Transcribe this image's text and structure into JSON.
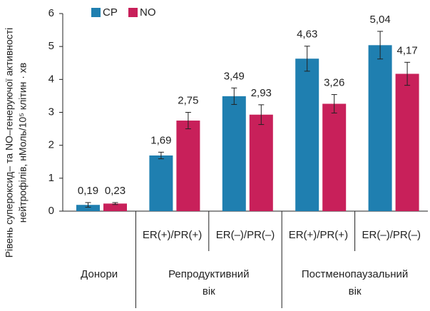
{
  "chart_data": {
    "type": "bar",
    "ylabel": [
      "Рівень супероксид– та NO–генеруючої активності",
      "нейтрофілів, нМоль/10⁵ клітин · хв"
    ],
    "categories": [
      null,
      "ER(+)/PR(+)",
      "ER(–)/PR(–)",
      "ER(+)/PR(+)",
      "ER(–)/PR(–)"
    ],
    "groups": [
      [
        "Донори"
      ],
      [
        "Репродуктивний",
        "вік"
      ],
      [
        "Постменопаузальний",
        "вік"
      ]
    ],
    "series": [
      {
        "name": "CP",
        "color": "#1f7fb0",
        "values": [
          0.19,
          1.69,
          3.49,
          4.63,
          5.04
        ],
        "errors": [
          0.07,
          0.1,
          0.25,
          0.38,
          0.42
        ],
        "value_labels": [
          "0,19",
          "1,69",
          "3,49",
          "4,63",
          "5,04"
        ]
      },
      {
        "name": "NO",
        "color": "#c8205a",
        "values": [
          0.23,
          2.75,
          2.93,
          3.26,
          4.17
        ],
        "errors": [
          0.03,
          0.25,
          0.3,
          0.28,
          0.35
        ],
        "value_labels": [
          "0,23",
          "2,75",
          "2,93",
          "3,26",
          "4,17"
        ]
      }
    ],
    "ylim": [
      0,
      6
    ],
    "yticks": [
      0,
      1,
      2,
      3,
      4,
      5,
      6
    ],
    "legend": "top"
  }
}
